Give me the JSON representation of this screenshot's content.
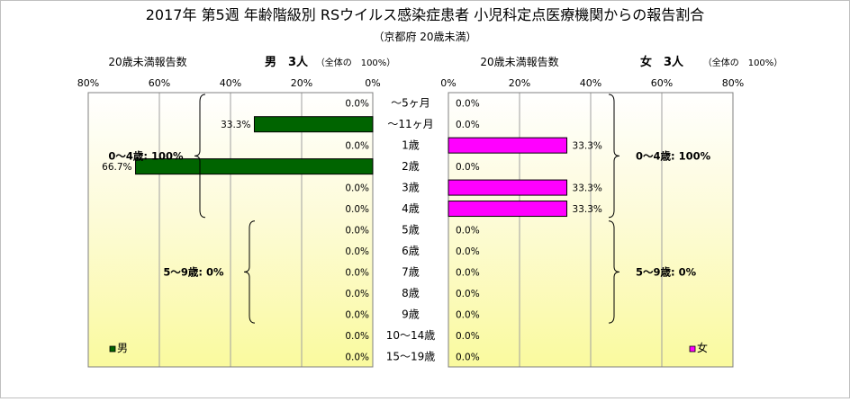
{
  "title": "2017年 第5週 年齢階級別 RSウイルス感染症患者 小児科定点医療機関からの報告割合",
  "subtitle": "（京都府 20歳未満）",
  "chart_data": {
    "type": "bar",
    "orientation": "horizontal-butterfly",
    "categories": [
      "～5ヶ月",
      "～11ヶ月",
      "1歳",
      "2歳",
      "3歳",
      "4歳",
      "5歳",
      "6歳",
      "7歳",
      "8歳",
      "9歳",
      "10～14歳",
      "15～19歳"
    ],
    "xlim": [
      0,
      80
    ],
    "x_ticks": [
      "0%",
      "20%",
      "40%",
      "60%",
      "80%"
    ],
    "grid": true,
    "series": [
      {
        "name": "男",
        "side": "left",
        "color": "#006400",
        "values": [
          0.0,
          33.3,
          0.0,
          66.7,
          0.0,
          0.0,
          0.0,
          0.0,
          0.0,
          0.0,
          0.0,
          0.0,
          0.0
        ],
        "value_labels": [
          "0.0%",
          "33.3%",
          "0.0%",
          "66.7%",
          "0.0%",
          "0.0%",
          "0.0%",
          "0.0%",
          "0.0%",
          "0.0%",
          "0.0%",
          "0.0%",
          "0.0%"
        ],
        "panel_label": "20歳未満報告数",
        "header": "男　3人",
        "header_note": "（全体の　100%）",
        "brackets": [
          {
            "label": "0～4歳: 100%",
            "from": 0,
            "to": 5
          },
          {
            "label": "5～9歳: 0%",
            "from": 6,
            "to": 10
          }
        ]
      },
      {
        "name": "女",
        "side": "right",
        "color": "#ff00ff",
        "values": [
          0.0,
          0.0,
          33.3,
          0.0,
          33.3,
          33.3,
          0.0,
          0.0,
          0.0,
          0.0,
          0.0,
          0.0,
          0.0
        ],
        "value_labels": [
          "0.0%",
          "0.0%",
          "33.3%",
          "0.0%",
          "33.3%",
          "33.3%",
          "0.0%",
          "0.0%",
          "0.0%",
          "0.0%",
          "0.0%",
          "0.0%",
          "0.0%"
        ],
        "panel_label": "20歳未満報告数",
        "header": "女　3人",
        "header_note": "（全体の　100%）",
        "brackets": [
          {
            "label": "0～4歳: 100%",
            "from": 0,
            "to": 5
          },
          {
            "label": "5～9歳: 0%",
            "from": 6,
            "to": 10
          }
        ]
      }
    ],
    "legend": {
      "left": "男",
      "right": "女",
      "placement": "bottom"
    }
  }
}
